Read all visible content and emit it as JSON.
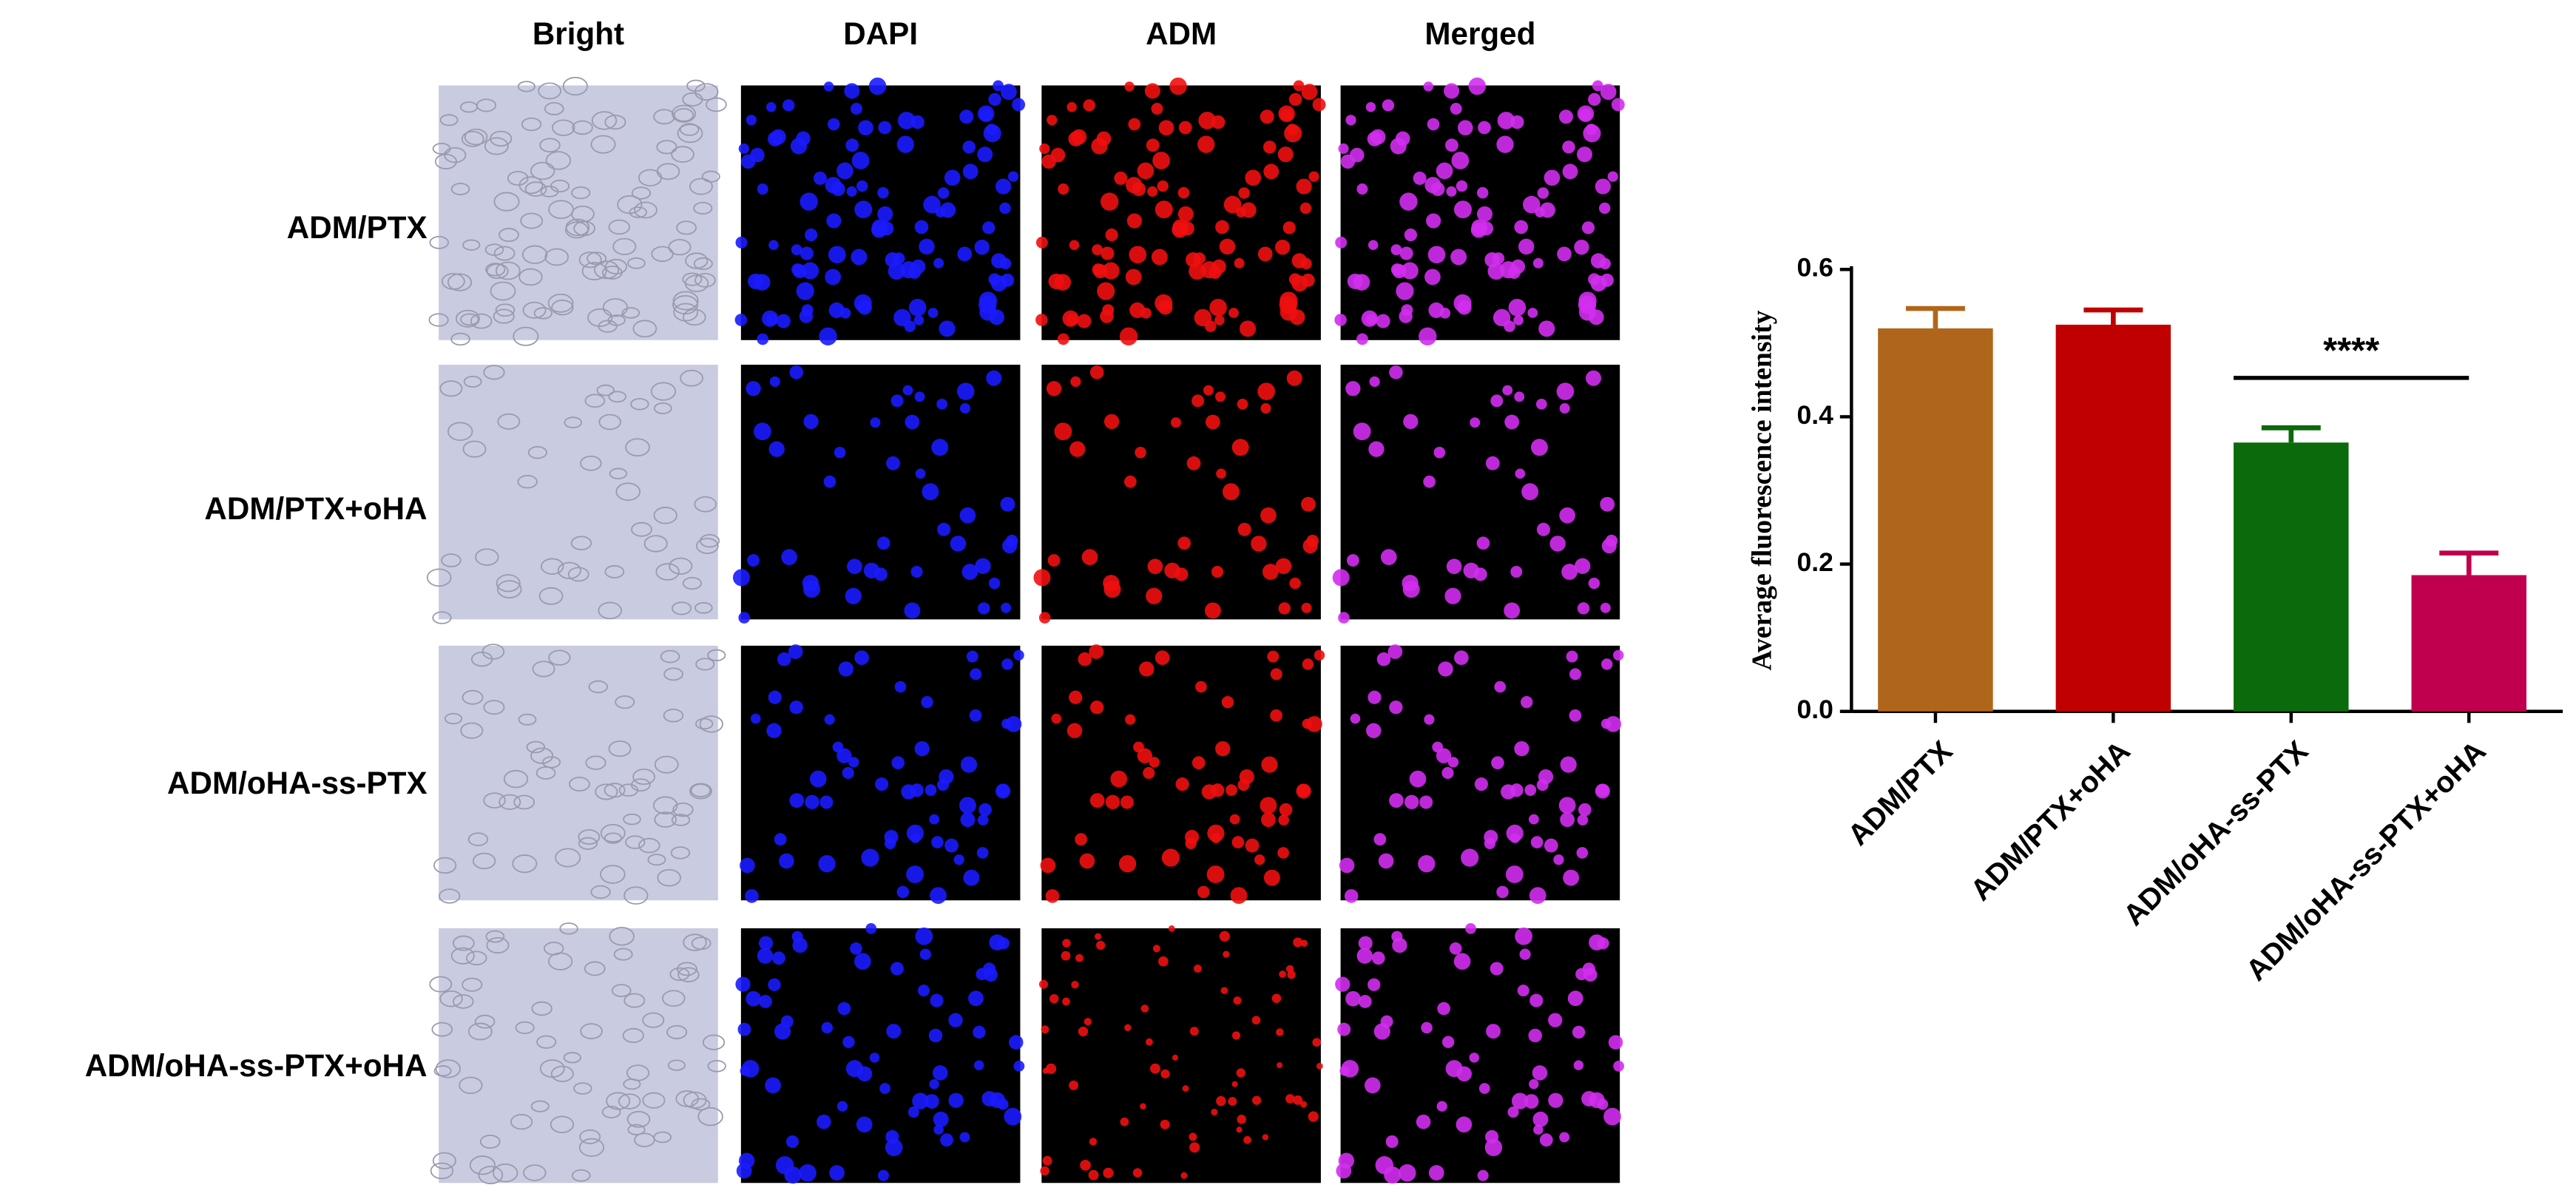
{
  "image_grid": {
    "columns": [
      "Bright",
      "DAPI",
      "ADM",
      "Merged"
    ],
    "rows": [
      "ADM/PTX",
      "ADM/PTX+oHA",
      "ADM/oHA-ss-PTX",
      "ADM/oHA-ss-PTX+oHA"
    ]
  },
  "chart_data": {
    "type": "bar",
    "y_label": "Average fluorescence intensity",
    "categories": [
      "ADM/PTX",
      "ADM/PTX+oHA",
      "ADM/oHA-ss-PTX",
      "ADM/oHA-ss-PTX+oHA"
    ],
    "values": [
      0.52,
      0.525,
      0.365,
      0.185
    ],
    "errors": [
      0.027,
      0.02,
      0.02,
      0.03
    ],
    "colors": [
      "#b0661a",
      "#c00000",
      "#0b6a0b",
      "#c0004e"
    ],
    "ylim": [
      0,
      0.6
    ],
    "yticks": [
      {
        "value": 0,
        "label": "0.0"
      },
      0.2,
      0.4,
      0.6
    ],
    "annotation": "****"
  }
}
